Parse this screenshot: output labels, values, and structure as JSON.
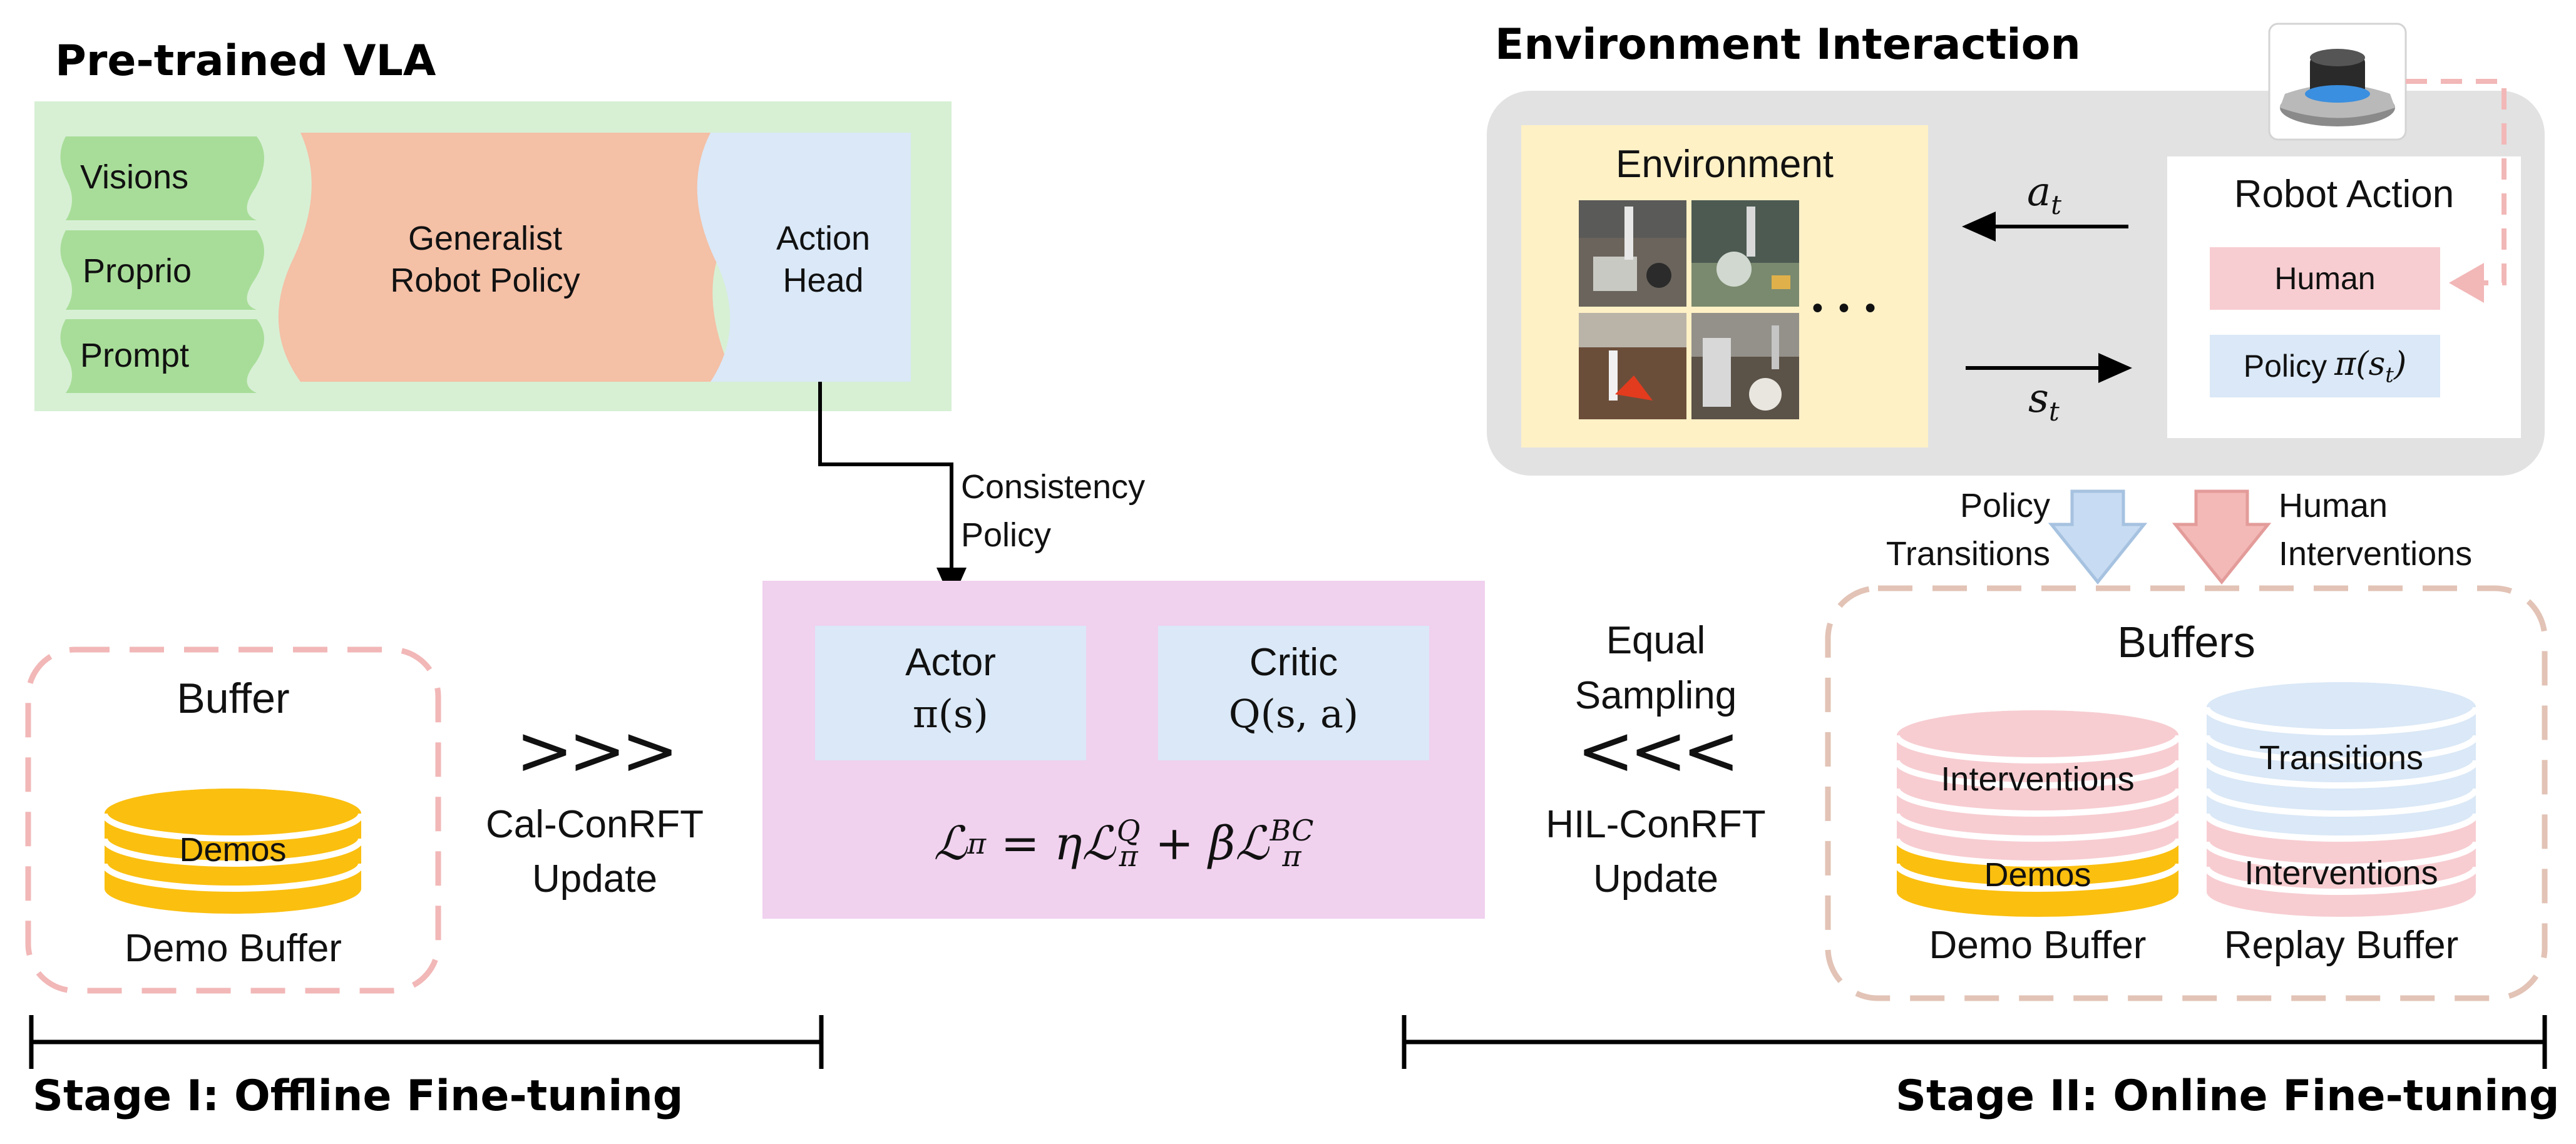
{
  "vla": {
    "title": "Pre-trained VLA",
    "inputs": [
      "Visions",
      "Proprio",
      "Prompt"
    ],
    "policy_label": "Generalist\nRobot Policy",
    "head_label": "Action\nHead"
  },
  "consistency": {
    "label": "Consistency\nPolicy"
  },
  "actor_critic": {
    "actor_title": "Actor",
    "actor_expr": "π(s)",
    "critic_title": "Critic",
    "critic_expr": "Q(s, a)",
    "loss_lhs": "ℒ",
    "loss_lhs_sub": "π",
    "loss_eq": " = η",
    "loss_t1": "ℒ",
    "loss_t1_sup": "Q",
    "loss_t1_sub": "π",
    "loss_plus": " + β",
    "loss_t2": "ℒ",
    "loss_t2_sup": "BC",
    "loss_t2_sub": "π"
  },
  "offline": {
    "buffer_title": "Buffer",
    "demos_label": "Demos",
    "demo_buffer_label": "Demo Buffer",
    "chevrons": ">>>",
    "update_label": "Cal-ConRFT\nUpdate",
    "stage_label": "Stage I: Offline Fine-tuning"
  },
  "online": {
    "env_title": "Environment Interaction",
    "environment_label": "Environment",
    "ellipsis": "• • •",
    "a_t": "a",
    "a_t_sub": "t",
    "s_t": "s",
    "s_t_sub": "t",
    "robot_action_title": "Robot Action",
    "human_label": "Human",
    "policy_label": "Policy",
    "policy_math": "π(s",
    "policy_math_sub": "t",
    "policy_math_close": ")",
    "policy_transitions": "Policy\nTransitions",
    "human_interventions": "Human\nInterventions",
    "equal_sampling": "Equal\nSampling",
    "chevrons": "<<<",
    "update_label": "HIL-ConRFT\nUpdate",
    "buffers_title": "Buffers",
    "demo_stack": [
      "Interventions",
      "Demos"
    ],
    "replay_stack": [
      "Transitions",
      "Interventions"
    ],
    "demo_buffer_label": "Demo Buffer",
    "replay_buffer_label": "Replay Buffer",
    "stage_label": "Stage II: Online Fine-tuning"
  },
  "colors": {
    "vla_bg": "#d7f0d4",
    "input_green": "#a8dd99",
    "policy_orange": "#f4c0a6",
    "head_blue": "#dae8f7",
    "update_panel": "#f0d1ee",
    "env_panel": "#e2e2e2",
    "env_yellow": "#fff1c6",
    "human_pink": "#f7cdd1",
    "dash_pink": "#f2b7b7",
    "dash_tan": "#e2c3b6",
    "gold": "#fbbf0f",
    "arrow_blue": "#c7dbf2",
    "arrow_pink": "#f3b9b7"
  },
  "icons": [
    "spacemouse-icon",
    "robot-photo-icon",
    "database-icon"
  ]
}
